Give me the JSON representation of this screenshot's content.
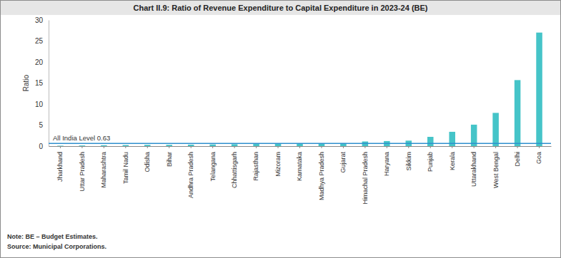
{
  "chart_data": {
    "type": "bar",
    "title": "Chart II.9: Ratio of Revenue Expenditure to Capital Expenditure in 2023-24 (BE)",
    "y_label": "Ratio",
    "categories": [
      "Jharkhand",
      "Uttar Pradesh",
      "Maharashtra",
      "Tamil Nadu",
      "Odisha",
      "Bihar",
      "Andhra Pradesh",
      "Telangana",
      "Chhattisgarh",
      "Rajasthan",
      "Mizoram",
      "Karnataka",
      "Madhya Pradesh",
      "Gujarat",
      "Himachal Pradesh",
      "Haryana",
      "Sikkim",
      "Punjab",
      "Kerala",
      "Uttarakhand",
      "West Bengal",
      "Delhi",
      "Goa"
    ],
    "values": [
      0.1,
      0.15,
      0.2,
      0.25,
      0.3,
      0.3,
      0.35,
      0.4,
      0.45,
      0.5,
      0.55,
      0.6,
      0.65,
      0.7,
      1.1,
      1.2,
      1.3,
      2.2,
      3.4,
      5.1,
      7.9,
      15.7,
      27.0
    ],
    "color": "#45c4c8",
    "ylim": [
      0,
      30
    ],
    "yticks": [
      0,
      5,
      10,
      15,
      20,
      25,
      30
    ],
    "reference_line": {
      "value": 0.63,
      "label": "All India Level 0.63",
      "color": "#2f8fce"
    },
    "note": "Note: BE – Budget Estimates.",
    "source": "Source: Municipal Corporations."
  }
}
